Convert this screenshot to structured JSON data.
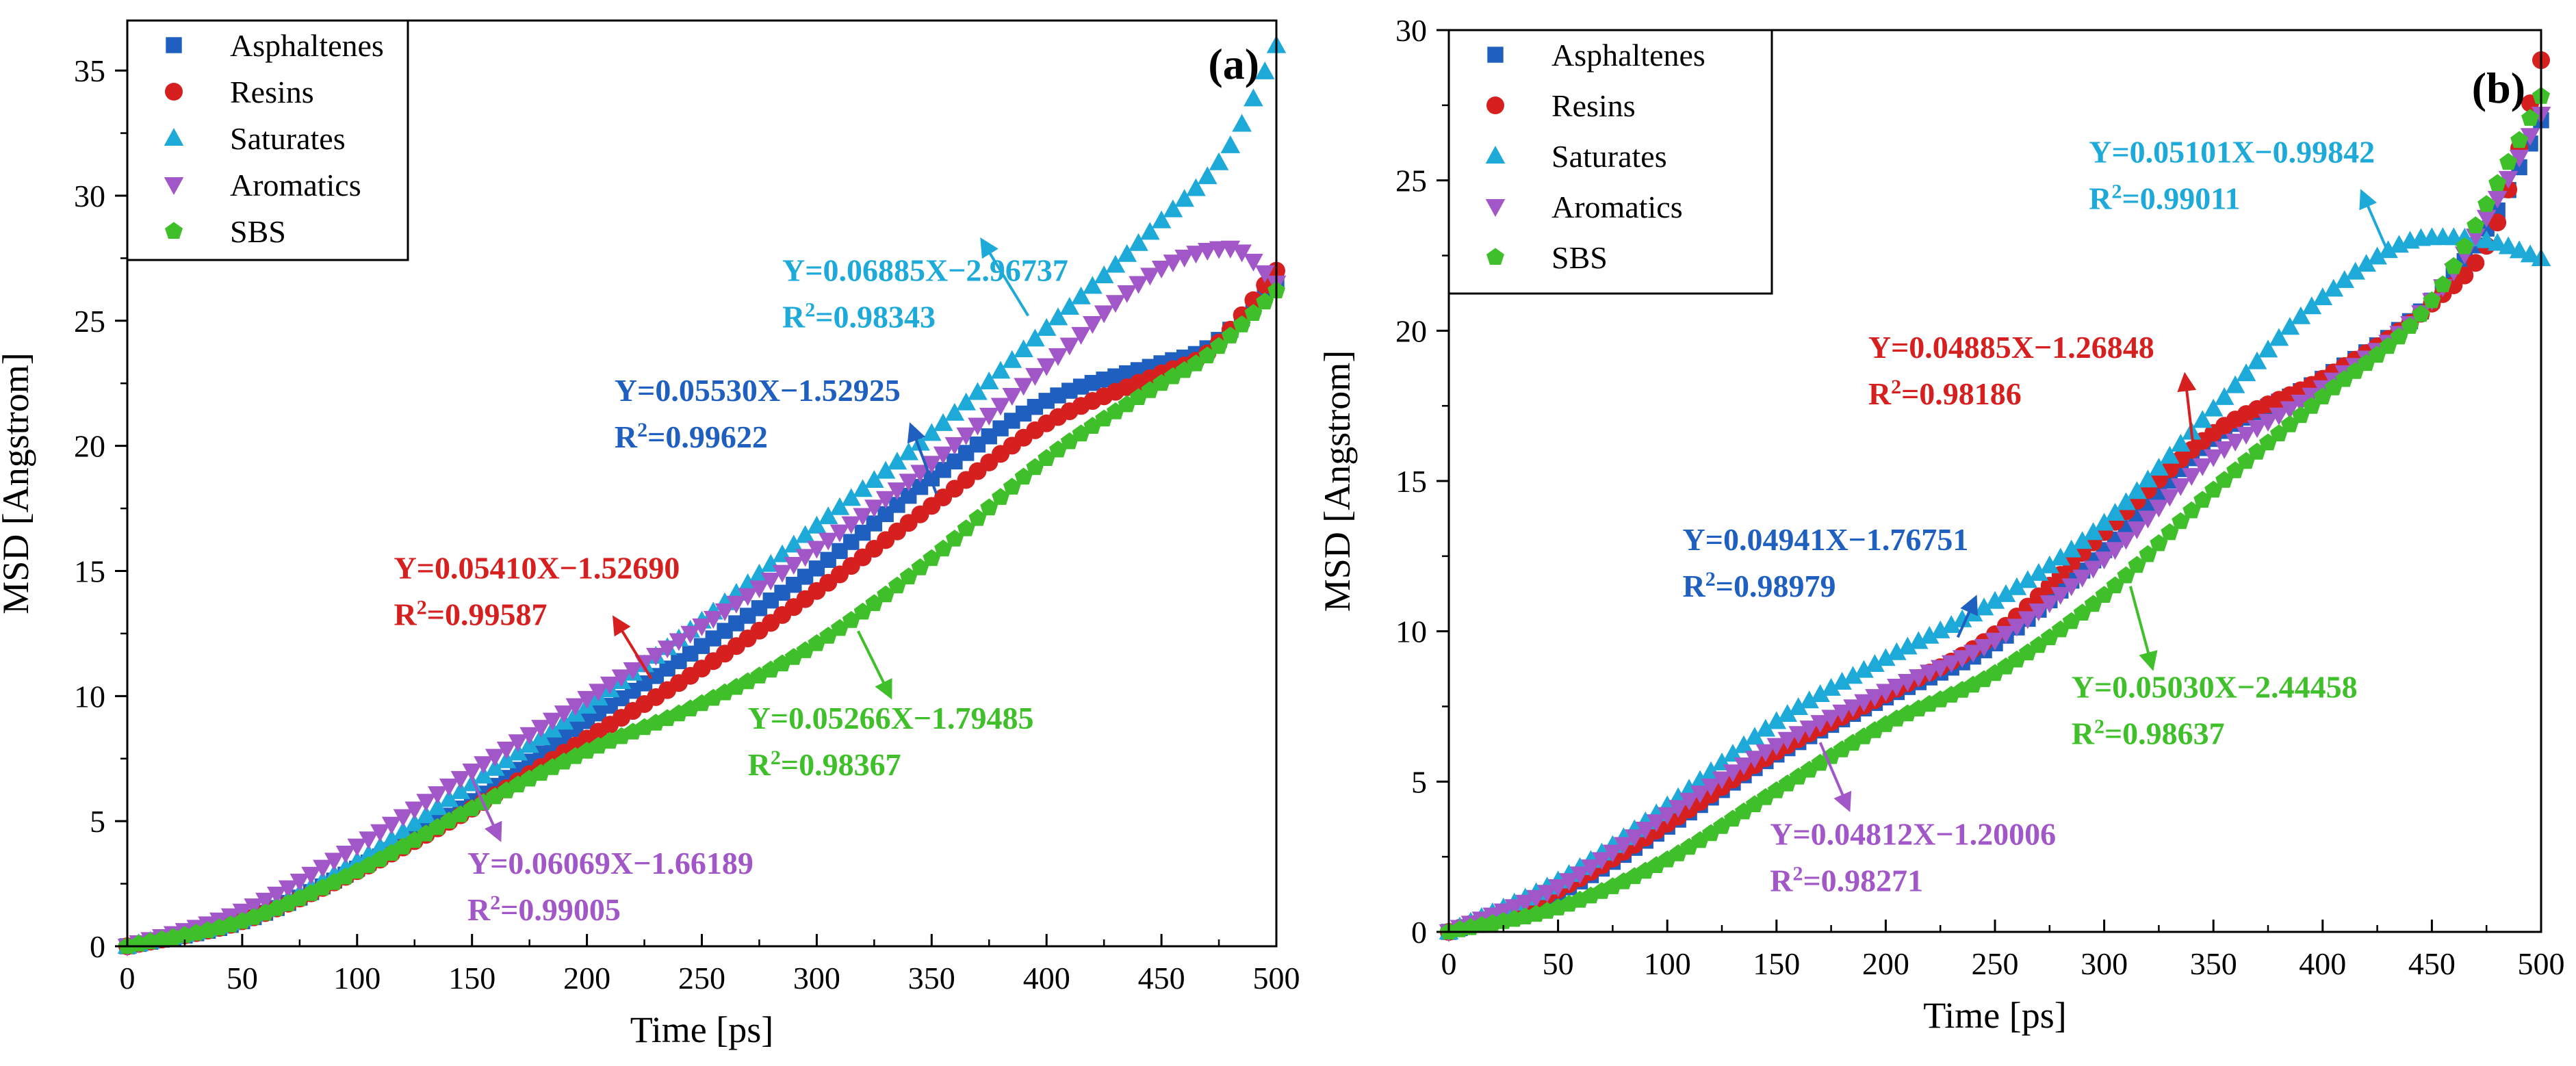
{
  "chart_data": [
    {
      "type": "scatter",
      "panel_label": "(a)",
      "xlabel": "Time [ps]",
      "ylabel": "MSD [Angstrom]",
      "xlim": [
        0,
        500
      ],
      "ylim": [
        0,
        37
      ],
      "xticks": [
        0,
        50,
        100,
        150,
        200,
        250,
        300,
        350,
        400,
        450,
        500
      ],
      "yticks": [
        0,
        5,
        10,
        15,
        20,
        25,
        30,
        35
      ],
      "legend_position": "top-left",
      "series": [
        {
          "name": "Asphaltenes",
          "marker": "square",
          "color": "#1f5fbf",
          "points": [
            [
              0,
              0
            ],
            [
              50,
              1.0
            ],
            [
              100,
              3.1
            ],
            [
              150,
              5.8
            ],
            [
              200,
              9.0
            ],
            [
              250,
              12.0
            ],
            [
              300,
              15.1
            ],
            [
              350,
              18.7
            ],
            [
              400,
              21.8
            ],
            [
              450,
              23.3
            ],
            [
              470,
              23.9
            ],
            [
              500,
              26.5
            ]
          ]
        },
        {
          "name": "Resins",
          "marker": "circle",
          "color": "#d62020",
          "points": [
            [
              0,
              0
            ],
            [
              50,
              1.0
            ],
            [
              100,
              3.0
            ],
            [
              150,
              5.5
            ],
            [
              200,
              8.3
            ],
            [
              250,
              11.1
            ],
            [
              300,
              14.2
            ],
            [
              350,
              17.6
            ],
            [
              400,
              20.9
            ],
            [
              450,
              22.9
            ],
            [
              470,
              23.7
            ],
            [
              500,
              27.0
            ]
          ]
        },
        {
          "name": "Saturates",
          "marker": "triangle-up",
          "color": "#1eaad8",
          "points": [
            [
              0,
              0
            ],
            [
              50,
              1.1
            ],
            [
              100,
              3.4
            ],
            [
              150,
              6.5
            ],
            [
              200,
              9.6
            ],
            [
              250,
              13.0
            ],
            [
              300,
              16.8
            ],
            [
              350,
              20.5
            ],
            [
              400,
              24.7
            ],
            [
              450,
              29.0
            ],
            [
              480,
              32.0
            ],
            [
              500,
              36.0
            ]
          ]
        },
        {
          "name": "Aromatics",
          "marker": "triangle-down",
          "color": "#a257c8",
          "points": [
            [
              0,
              0
            ],
            [
              50,
              1.4
            ],
            [
              100,
              4.0
            ],
            [
              150,
              7.0
            ],
            [
              200,
              9.9
            ],
            [
              250,
              12.8
            ],
            [
              300,
              15.9
            ],
            [
              350,
              19.3
            ],
            [
              400,
              23.2
            ],
            [
              450,
              27.1
            ],
            [
              480,
              27.9
            ],
            [
              500,
              26.5
            ]
          ]
        },
        {
          "name": "SBS",
          "marker": "pentagon",
          "color": "#3fbf2a",
          "points": [
            [
              0,
              0
            ],
            [
              50,
              1.0
            ],
            [
              100,
              3.0
            ],
            [
              150,
              5.5
            ],
            [
              200,
              7.8
            ],
            [
              250,
              9.7
            ],
            [
              300,
              12.1
            ],
            [
              350,
              15.5
            ],
            [
              400,
              19.5
            ],
            [
              450,
              22.5
            ],
            [
              470,
              23.6
            ],
            [
              500,
              26.2
            ]
          ]
        }
      ],
      "annotations": [
        {
          "eq": "Y=0.06885X−2.96737",
          "r2_label": "R",
          "r2_value": "=0.98343",
          "color": "#1eaad8",
          "at": [
            285,
            26.6
          ],
          "arrow_from": [
            392,
            25.2
          ],
          "arrow_to": [
            372,
            28.2
          ]
        },
        {
          "eq": "Y=0.05530X−1.52925",
          "r2_label": "R",
          "r2_value": "=0.99622",
          "color": "#1f5fbf",
          "at": [
            212,
            21.8
          ],
          "arrow_from": [
            352,
            18.1
          ],
          "arrow_to": [
            341,
            20.8
          ]
        },
        {
          "eq": "Y=0.05410X−1.52690",
          "r2_label": "R",
          "r2_value": "=0.99587",
          "color": "#d62020",
          "at": [
            116,
            14.7
          ],
          "arrow_from": [
            228,
            10.7
          ],
          "arrow_to": [
            212,
            13.1
          ]
        },
        {
          "eq": "Y=0.05266X−1.79485",
          "r2_label": "R",
          "r2_value": "=0.98367",
          "color": "#3fbf2a",
          "at": [
            270,
            8.7
          ],
          "arrow_from": [
            318,
            12.6
          ],
          "arrow_to": [
            332,
            10.0
          ]
        },
        {
          "eq": "Y=0.06069X−1.66189",
          "r2_label": "R",
          "r2_value": "=0.99005",
          "color": "#a257c8",
          "at": [
            148,
            2.9
          ],
          "arrow_from": [
            150,
            6.7
          ],
          "arrow_to": [
            162,
            4.3
          ]
        }
      ]
    },
    {
      "type": "scatter",
      "panel_label": "(b)",
      "xlabel": "Time [ps]",
      "ylabel": "MSD [Angstrom]",
      "xlim": [
        0,
        500
      ],
      "ylim": [
        0,
        30
      ],
      "xticks": [
        0,
        50,
        100,
        150,
        200,
        250,
        300,
        350,
        400,
        450,
        500
      ],
      "yticks": [
        0,
        5,
        10,
        15,
        20,
        25,
        30
      ],
      "legend_position": "top-left",
      "series": [
        {
          "name": "Asphaltenes",
          "marker": "square",
          "color": "#1f5fbf",
          "points": [
            [
              0,
              0
            ],
            [
              50,
              1.3
            ],
            [
              100,
              3.5
            ],
            [
              150,
              5.9
            ],
            [
              200,
              7.8
            ],
            [
              250,
              9.6
            ],
            [
              300,
              12.7
            ],
            [
              350,
              16.4
            ],
            [
              400,
              18.4
            ],
            [
              450,
              21.0
            ],
            [
              480,
              24.0
            ],
            [
              500,
              27.0
            ]
          ]
        },
        {
          "name": "Resins",
          "marker": "circle",
          "color": "#d62020",
          "points": [
            [
              0,
              0
            ],
            [
              50,
              1.4
            ],
            [
              100,
              3.6
            ],
            [
              150,
              6.0
            ],
            [
              200,
              7.9
            ],
            [
              250,
              9.9
            ],
            [
              300,
              13.3
            ],
            [
              350,
              16.6
            ],
            [
              400,
              18.4
            ],
            [
              450,
              20.9
            ],
            [
              480,
              23.6
            ],
            [
              500,
              29.0
            ]
          ]
        },
        {
          "name": "Saturates",
          "marker": "triangle-up",
          "color": "#1eaad8",
          "points": [
            [
              0,
              0
            ],
            [
              50,
              1.7
            ],
            [
              100,
              4.2
            ],
            [
              150,
              7.0
            ],
            [
              200,
              9.1
            ],
            [
              250,
              11.0
            ],
            [
              300,
              13.6
            ],
            [
              350,
              17.4
            ],
            [
              400,
              21.1
            ],
            [
              450,
              23.1
            ],
            [
              475,
              23.0
            ],
            [
              500,
              22.4
            ]
          ]
        },
        {
          "name": "Aromatics",
          "marker": "triangle-down",
          "color": "#a257c8",
          "points": [
            [
              0,
              0
            ],
            [
              50,
              1.5
            ],
            [
              100,
              3.9
            ],
            [
              150,
              6.2
            ],
            [
              200,
              8.0
            ],
            [
              250,
              9.7
            ],
            [
              300,
              12.4
            ],
            [
              350,
              15.8
            ],
            [
              400,
              18.1
            ],
            [
              450,
              21.0
            ],
            [
              480,
              24.4
            ],
            [
              500,
              27.2
            ]
          ]
        },
        {
          "name": "SBS",
          "marker": "pentagon",
          "color": "#3fbf2a",
          "points": [
            [
              0,
              0
            ],
            [
              50,
              0.8
            ],
            [
              100,
              2.4
            ],
            [
              150,
              4.7
            ],
            [
              200,
              6.9
            ],
            [
              250,
              8.6
            ],
            [
              300,
              11.2
            ],
            [
              350,
              14.7
            ],
            [
              400,
              17.8
            ],
            [
              450,
              21.0
            ],
            [
              480,
              24.9
            ],
            [
              500,
              27.8
            ]
          ]
        }
      ],
      "annotations": [
        {
          "eq": "Y=0.05101X−0.99842",
          "r2_label": "R",
          "r2_value": "=0.99011",
          "color": "#1eaad8",
          "at": [
            293,
            25.6
          ],
          "arrow_from": [
            430,
            22.6
          ],
          "arrow_to": [
            418,
            24.6
          ]
        },
        {
          "eq": "Y=0.04885X−1.26848",
          "r2_label": "R",
          "r2_value": "=0.98186",
          "color": "#d62020",
          "at": [
            192,
            19.1
          ],
          "arrow_from": [
            341,
            16.0
          ],
          "arrow_to": [
            337,
            18.5
          ]
        },
        {
          "eq": "Y=0.04941X−1.76751",
          "r2_label": "R",
          "r2_value": "=0.98979",
          "color": "#1f5fbf",
          "at": [
            107,
            12.7
          ],
          "arrow_from": [
            233,
            9.8
          ],
          "arrow_to": [
            241,
            11.1
          ]
        },
        {
          "eq": "Y=0.05030X−2.44458",
          "r2_label": "R",
          "r2_value": "=0.98637",
          "color": "#3fbf2a",
          "at": [
            285,
            7.8
          ],
          "arrow_from": [
            312,
            11.5
          ],
          "arrow_to": [
            322,
            8.8
          ]
        },
        {
          "eq": "Y=0.04812X−1.20006",
          "r2_label": "R",
          "r2_value": "=0.98271",
          "color": "#a257c8",
          "at": [
            147,
            2.9
          ],
          "arrow_from": [
            170,
            6.3
          ],
          "arrow_to": [
            183,
            4.1
          ]
        }
      ]
    }
  ]
}
